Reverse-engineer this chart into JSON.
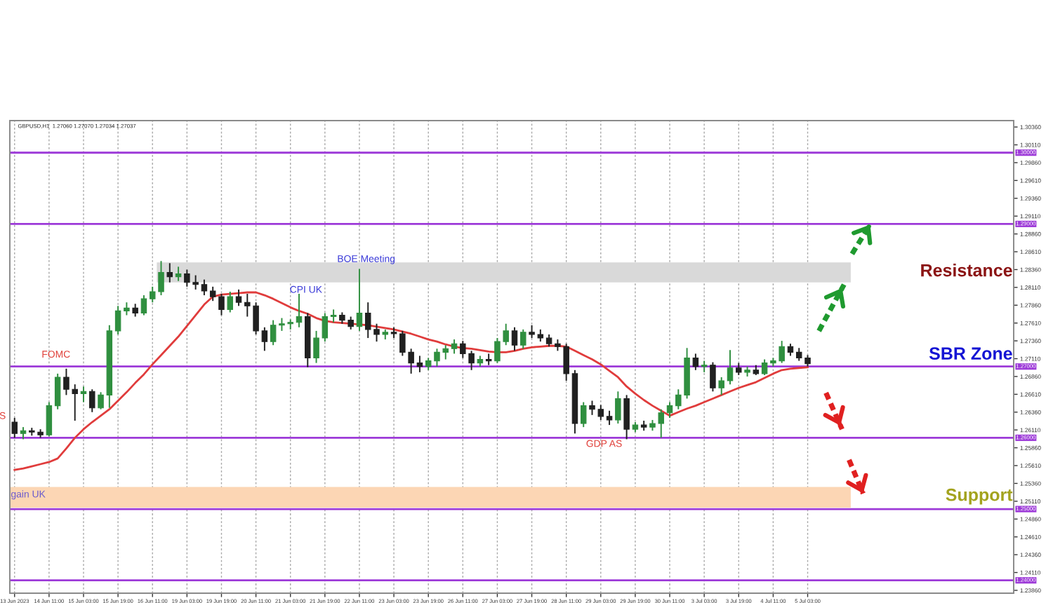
{
  "chart_data": {
    "type": "candlestick",
    "title": "GBPUSD,H1  1.27060 1.27070 1.27034 1.27037",
    "categories": [
      "13 Jun 2023",
      null,
      null,
      null,
      "14 Jun 11:00",
      null,
      null,
      null,
      "15 Jun 03:00",
      null,
      null,
      null,
      "15 Jun 19:00",
      null,
      null,
      null,
      "16 Jun 11:00",
      null,
      null,
      null,
      "19 Jun 03:00",
      null,
      null,
      null,
      "19 Jun 19:00",
      null,
      null,
      null,
      "20 Jun 11:00",
      null,
      null,
      null,
      "21 Jun 03:00",
      null,
      null,
      null,
      "21 Jun 19:00",
      null,
      null,
      null,
      "22 Jun 11:00",
      null,
      null,
      null,
      "23 Jun 03:00",
      null,
      null,
      null,
      "23 Jun 19:00",
      null,
      null,
      null,
      "26 Jun 11:00",
      null,
      null,
      null,
      "27 Jun 03:00",
      null,
      null,
      null,
      "27 Jun 19:00",
      null,
      null,
      null,
      "28 Jun 11:00",
      null,
      null,
      null,
      "29 Jun 03:00",
      null,
      null,
      null,
      "29 Jun 19:00",
      null,
      null,
      null,
      "30 Jun 11:00",
      null,
      null,
      null,
      "3 Jul 03:00",
      null,
      null,
      null,
      "3 Jul 19:00",
      null,
      null,
      null,
      "4 Jul 11:00",
      null,
      null,
      null,
      "5 Jul 03:00"
    ],
    "ohlc": [
      [
        1.2622,
        1.2628,
        1.26,
        1.2606
      ],
      [
        1.2606,
        1.2615,
        1.2598,
        1.261
      ],
      [
        1.261,
        1.2614,
        1.2603,
        1.2608
      ],
      [
        1.2608,
        1.2612,
        1.26,
        1.2604
      ],
      [
        1.2604,
        1.265,
        1.2602,
        1.2645
      ],
      [
        1.2645,
        1.269,
        1.264,
        1.2685
      ],
      [
        1.2685,
        1.2697,
        1.266,
        1.2668
      ],
      [
        1.2668,
        1.2675,
        1.2624,
        1.2662
      ],
      [
        1.2662,
        1.2672,
        1.265,
        1.2665
      ],
      [
        1.2665,
        1.2668,
        1.2636,
        1.2642
      ],
      [
        1.2642,
        1.2664,
        1.264,
        1.266
      ],
      [
        1.266,
        1.2758,
        1.2642,
        1.275
      ],
      [
        1.275,
        1.2785,
        1.2745,
        1.2778
      ],
      [
        1.2778,
        1.279,
        1.2772,
        1.2782
      ],
      [
        1.2782,
        1.2788,
        1.277,
        1.2775
      ],
      [
        1.2775,
        1.28,
        1.2772,
        1.2795
      ],
      [
        1.2795,
        1.2812,
        1.279,
        1.2805
      ],
      [
        1.2805,
        1.2848,
        1.28,
        1.2832
      ],
      [
        1.2832,
        1.2845,
        1.2818,
        1.2826
      ],
      [
        1.2826,
        1.284,
        1.282,
        1.283
      ],
      [
        1.283,
        1.2836,
        1.2812,
        1.2818
      ],
      [
        1.2818,
        1.2828,
        1.2808,
        1.2815
      ],
      [
        1.2815,
        1.2822,
        1.28,
        1.2806
      ],
      [
        1.2806,
        1.2812,
        1.2792,
        1.2798
      ],
      [
        1.2798,
        1.2802,
        1.2772,
        1.278
      ],
      [
        1.278,
        1.2805,
        1.2776,
        1.2798
      ],
      [
        1.2798,
        1.2808,
        1.2785,
        1.279
      ],
      [
        1.279,
        1.2802,
        1.277,
        1.2785
      ],
      [
        1.2785,
        1.279,
        1.2745,
        1.275
      ],
      [
        1.275,
        1.2755,
        1.2722,
        1.2735
      ],
      [
        1.2735,
        1.2765,
        1.273,
        1.2758
      ],
      [
        1.2758,
        1.2768,
        1.275,
        1.276
      ],
      [
        1.276,
        1.2766,
        1.2752,
        1.2762
      ],
      [
        1.2762,
        1.2802,
        1.2755,
        1.277
      ],
      [
        1.277,
        1.2775,
        1.2699,
        1.2712
      ],
      [
        1.2712,
        1.275,
        1.2705,
        1.274
      ],
      [
        1.274,
        1.2775,
        1.2735,
        1.277
      ],
      [
        1.277,
        1.278,
        1.2762,
        1.2772
      ],
      [
        1.2772,
        1.2776,
        1.276,
        1.2765
      ],
      [
        1.2765,
        1.277,
        1.2752,
        1.2756
      ],
      [
        1.2756,
        1.2837,
        1.275,
        1.2775
      ],
      [
        1.2775,
        1.279,
        1.274,
        1.2752
      ],
      [
        1.2752,
        1.276,
        1.2735,
        1.2745
      ],
      [
        1.2745,
        1.2752,
        1.2738,
        1.2748
      ],
      [
        1.2748,
        1.2755,
        1.274,
        1.2746
      ],
      [
        1.2746,
        1.275,
        1.2715,
        1.272
      ],
      [
        1.272,
        1.2725,
        1.269,
        1.2705
      ],
      [
        1.2705,
        1.2715,
        1.2692,
        1.27
      ],
      [
        1.27,
        1.2712,
        1.2695,
        1.2708
      ],
      [
        1.2708,
        1.2725,
        1.27,
        1.272
      ],
      [
        1.272,
        1.273,
        1.271,
        1.2725
      ],
      [
        1.2725,
        1.2738,
        1.2718,
        1.2732
      ],
      [
        1.2732,
        1.2736,
        1.2712,
        1.2718
      ],
      [
        1.2718,
        1.2722,
        1.2695,
        1.2705
      ],
      [
        1.2705,
        1.2715,
        1.27,
        1.271
      ],
      [
        1.271,
        1.2718,
        1.2702,
        1.2708
      ],
      [
        1.2708,
        1.274,
        1.2705,
        1.2735
      ],
      [
        1.2735,
        1.276,
        1.273,
        1.275
      ],
      [
        1.275,
        1.2755,
        1.2722,
        1.273
      ],
      [
        1.273,
        1.2752,
        1.2725,
        1.2748
      ],
      [
        1.2748,
        1.2758,
        1.274,
        1.2745
      ],
      [
        1.2745,
        1.2752,
        1.2735,
        1.274
      ],
      [
        1.274,
        1.2745,
        1.2728,
        1.2732
      ],
      [
        1.2732,
        1.2738,
        1.2722,
        1.2728
      ],
      [
        1.2728,
        1.2732,
        1.268,
        1.269
      ],
      [
        1.269,
        1.2695,
        1.2606,
        1.262
      ],
      [
        1.262,
        1.265,
        1.2615,
        1.2645
      ],
      [
        1.2645,
        1.2652,
        1.2632,
        1.264
      ],
      [
        1.264,
        1.2646,
        1.2625,
        1.263
      ],
      [
        1.263,
        1.2638,
        1.2618,
        1.2625
      ],
      [
        1.2625,
        1.2665,
        1.262,
        1.2655
      ],
      [
        1.2655,
        1.266,
        1.2598,
        1.2612
      ],
      [
        1.2612,
        1.2622,
        1.2608,
        1.2618
      ],
      [
        1.2618,
        1.2624,
        1.261,
        1.2615
      ],
      [
        1.2615,
        1.2625,
        1.261,
        1.262
      ],
      [
        1.262,
        1.264,
        1.26,
        1.2635
      ],
      [
        1.2635,
        1.265,
        1.2628,
        1.2645
      ],
      [
        1.2645,
        1.2668,
        1.264,
        1.266
      ],
      [
        1.266,
        1.2726,
        1.2655,
        1.2712
      ],
      [
        1.2712,
        1.2718,
        1.2695,
        1.27
      ],
      [
        1.27,
        1.2708,
        1.2692,
        1.2702
      ],
      [
        1.2702,
        1.2706,
        1.2665,
        1.267
      ],
      [
        1.267,
        1.2685,
        1.266,
        1.268
      ],
      [
        1.268,
        1.2723,
        1.2675,
        1.2698
      ],
      [
        1.2698,
        1.2705,
        1.2688,
        1.2692
      ],
      [
        1.2692,
        1.27,
        1.2686,
        1.2695
      ],
      [
        1.2695,
        1.2702,
        1.2688,
        1.269
      ],
      [
        1.269,
        1.271,
        1.2688,
        1.2705
      ],
      [
        1.2705,
        1.2712,
        1.27,
        1.2708
      ],
      [
        1.2708,
        1.2736,
        1.2705,
        1.2728
      ],
      [
        1.2728,
        1.2732,
        1.2715,
        1.272
      ],
      [
        1.272,
        1.2726,
        1.2708,
        1.2712
      ],
      [
        1.2712,
        1.2716,
        1.27,
        1.2704
      ]
    ],
    "colors": [
      "#202020",
      "#2f8f3f",
      "#202020",
      "#202020",
      "#2f8f3f",
      "#2f8f3f",
      "#202020",
      "#202020",
      "#2f8f3f",
      "#202020",
      "#2f8f3f",
      "#2f8f3f",
      "#2f8f3f",
      "#2f8f3f",
      "#202020",
      "#2f8f3f",
      "#2f8f3f",
      "#2f8f3f",
      "#202020",
      "#2f8f3f",
      "#202020",
      "#202020",
      "#202020",
      "#202020",
      "#202020",
      "#2f8f3f",
      "#202020",
      "#202020",
      "#202020",
      "#202020",
      "#2f8f3f",
      "#2f8f3f",
      "#2f8f3f",
      "#2f8f3f",
      "#202020",
      "#2f8f3f",
      "#2f8f3f",
      "#2f8f3f",
      "#202020",
      "#202020",
      "#2f8f3f",
      "#202020",
      "#202020",
      "#2f8f3f",
      "#202020",
      "#202020",
      "#202020",
      "#202020",
      "#2f8f3f",
      "#2f8f3f",
      "#2f8f3f",
      "#2f8f3f",
      "#202020",
      "#202020",
      "#2f8f3f",
      "#202020",
      "#2f8f3f",
      "#2f8f3f",
      "#202020",
      "#2f8f3f",
      "#202020",
      "#202020",
      "#202020",
      "#202020",
      "#202020",
      "#202020",
      "#2f8f3f",
      "#202020",
      "#202020",
      "#202020",
      "#2f8f3f",
      "#202020",
      "#2f8f3f",
      "#202020",
      "#2f8f3f",
      "#2f8f3f",
      "#2f8f3f",
      "#2f8f3f",
      "#2f8f3f",
      "#202020",
      "#2f8f3f",
      "#202020",
      "#2f8f3f",
      "#2f8f3f",
      "#202020",
      "#2f8f3f",
      "#202020",
      "#2f8f3f",
      "#2f8f3f",
      "#2f8f3f",
      "#202020",
      "#202020",
      "#202020"
    ],
    "series": [
      {
        "type": "line",
        "color": "#e03c3c",
        "values": [
          1.2555,
          1.2557,
          1.256,
          1.2563,
          1.2566,
          1.2571,
          1.2585,
          1.26,
          1.2612,
          1.2622,
          1.2631,
          1.264,
          1.2652,
          1.2664,
          1.2677,
          1.2689,
          1.2703,
          1.2716,
          1.2729,
          1.2742,
          1.2757,
          1.2772,
          1.2787,
          1.2798,
          1.2801,
          1.2802,
          1.2803,
          1.2804,
          1.2804,
          1.28,
          1.2795,
          1.2789,
          1.2783,
          1.2778,
          1.2774,
          1.2768,
          1.2764,
          1.2762,
          1.2761,
          1.276,
          1.2759,
          1.2758,
          1.2756,
          1.2754,
          1.2752,
          1.2749,
          1.2746,
          1.2742,
          1.2738,
          1.2735,
          1.2731,
          1.2728,
          1.2726,
          1.2725,
          1.2723,
          1.2721,
          1.272,
          1.272,
          1.2722,
          1.2725,
          1.2727,
          1.2728,
          1.2729,
          1.2729,
          1.2728,
          1.2722,
          1.2716,
          1.271,
          1.2703,
          1.2694,
          1.2685,
          1.2672,
          1.2662,
          1.2653,
          1.2645,
          1.2638,
          1.2631,
          1.2636,
          1.2641,
          1.2645,
          1.265,
          1.2655,
          1.266,
          1.2665,
          1.267,
          1.2674,
          1.2678,
          1.2684,
          1.269,
          1.2695,
          1.2697,
          1.2698,
          1.2699
        ]
      }
    ],
    "ylim": [
      1.2382,
      1.3045
    ],
    "yticks": [
      {
        "value": 1.2386,
        "label": "1.23860"
      },
      {
        "value": 1.2411,
        "label": "1.24110"
      },
      {
        "value": 1.2436,
        "label": "1.24360"
      },
      {
        "value": 1.2461,
        "label": "1.24610"
      },
      {
        "value": 1.2486,
        "label": "1.24860"
      },
      {
        "value": 1.2511,
        "label": "1.25110"
      },
      {
        "value": 1.2536,
        "label": "1.25360"
      },
      {
        "value": 1.2561,
        "label": "1.25610"
      },
      {
        "value": 1.2586,
        "label": "1.25860"
      },
      {
        "value": 1.2611,
        "label": "1.26110"
      },
      {
        "value": 1.2636,
        "label": "1.26360"
      },
      {
        "value": 1.2661,
        "label": "1.26610"
      },
      {
        "value": 1.2686,
        "label": "1.26860"
      },
      {
        "value": 1.2711,
        "label": "1.27110"
      },
      {
        "value": 1.2736,
        "label": "1.27360"
      },
      {
        "value": 1.2761,
        "label": "1.27610"
      },
      {
        "value": 1.2786,
        "label": "1.27860"
      },
      {
        "value": 1.2811,
        "label": "1.28110"
      },
      {
        "value": 1.2836,
        "label": "1.28360"
      },
      {
        "value": 1.2861,
        "label": "1.28610"
      },
      {
        "value": 1.2886,
        "label": "1.28860"
      },
      {
        "value": 1.2911,
        "label": "1.29110"
      },
      {
        "value": 1.2936,
        "label": "1.29360"
      },
      {
        "value": 1.2961,
        "label": "1.29610"
      },
      {
        "value": 1.2986,
        "label": "1.29860"
      },
      {
        "value": 1.3011,
        "label": "1.30110"
      },
      {
        "value": 1.3036,
        "label": "1.30360"
      }
    ],
    "grid": "x",
    "ref_lines": [
      {
        "axis": "y",
        "value": 1.3,
        "label": "1.30000",
        "color": "#9d3ad8"
      },
      {
        "axis": "y",
        "value": 1.29,
        "label": "1.29000",
        "color": "#9d3ad8"
      },
      {
        "axis": "y",
        "value": 1.27,
        "label": "1.27000",
        "color": "#9d3ad8"
      },
      {
        "axis": "y",
        "value": 1.26,
        "label": "1.26000",
        "color": "#9d3ad8"
      },
      {
        "axis": "y",
        "value": 1.25,
        "label": "1.25000",
        "color": "#9d3ad8"
      },
      {
        "axis": "y",
        "value": 1.24,
        "label": "1.24000",
        "color": "#9d3ad8"
      }
    ],
    "bands": [
      {
        "axis": "y",
        "from": 1.2818,
        "to": 1.2846,
        "color": "#d9d9d9"
      },
      {
        "axis": "y",
        "from": 1.2502,
        "to": 1.2531,
        "color": "#fcd6b4"
      }
    ],
    "annotations": [
      "FOMC",
      "CPI UK",
      "BOE Meeting",
      "GDP AS",
      "Resistance",
      "SBR Zone",
      "Support",
      "gain UK",
      "S"
    ]
  }
}
